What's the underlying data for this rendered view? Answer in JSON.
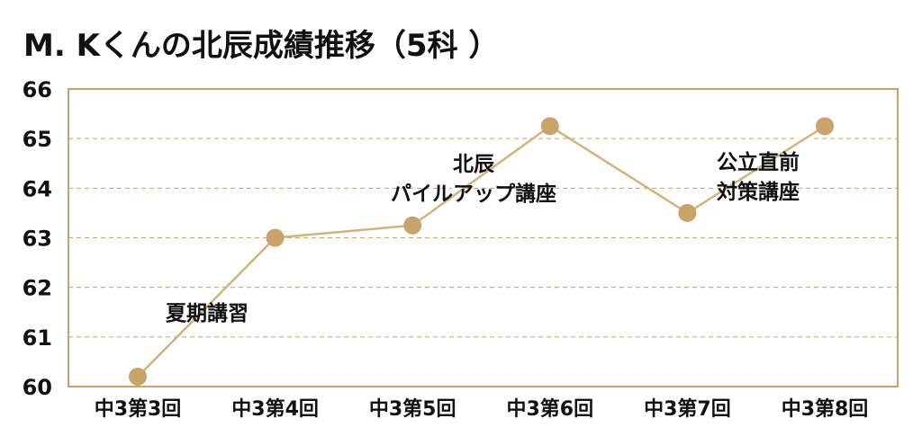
{
  "chart_data": {
    "type": "line",
    "title": "M. Kくんの北辰成績推移（5科 ）",
    "categories": [
      "中3第3回",
      "中3第4回",
      "中3第5回",
      "中3第6回",
      "中3第7回",
      "中3第8回"
    ],
    "series": [
      {
        "values": [
          60.2,
          63.0,
          63.25,
          65.25,
          63.5,
          65.25
        ]
      }
    ],
    "ylim": [
      60,
      66
    ],
    "yticks": [
      60,
      61,
      62,
      63,
      64,
      65,
      66
    ],
    "grid": true,
    "annotations": [
      {
        "lines": [
          "夏期講習"
        ],
        "between": [
          0,
          1
        ]
      },
      {
        "lines": [
          "北辰",
          "パイルアップ講座"
        ],
        "between": [
          2,
          3
        ]
      },
      {
        "lines": [
          "公立直前",
          "対策講座"
        ],
        "between": [
          4,
          5
        ]
      }
    ],
    "colors": {
      "line": "#d4b27a",
      "marker": "#c8a46a",
      "frame": "#c8a46a",
      "grid": "#c9a36a"
    }
  }
}
